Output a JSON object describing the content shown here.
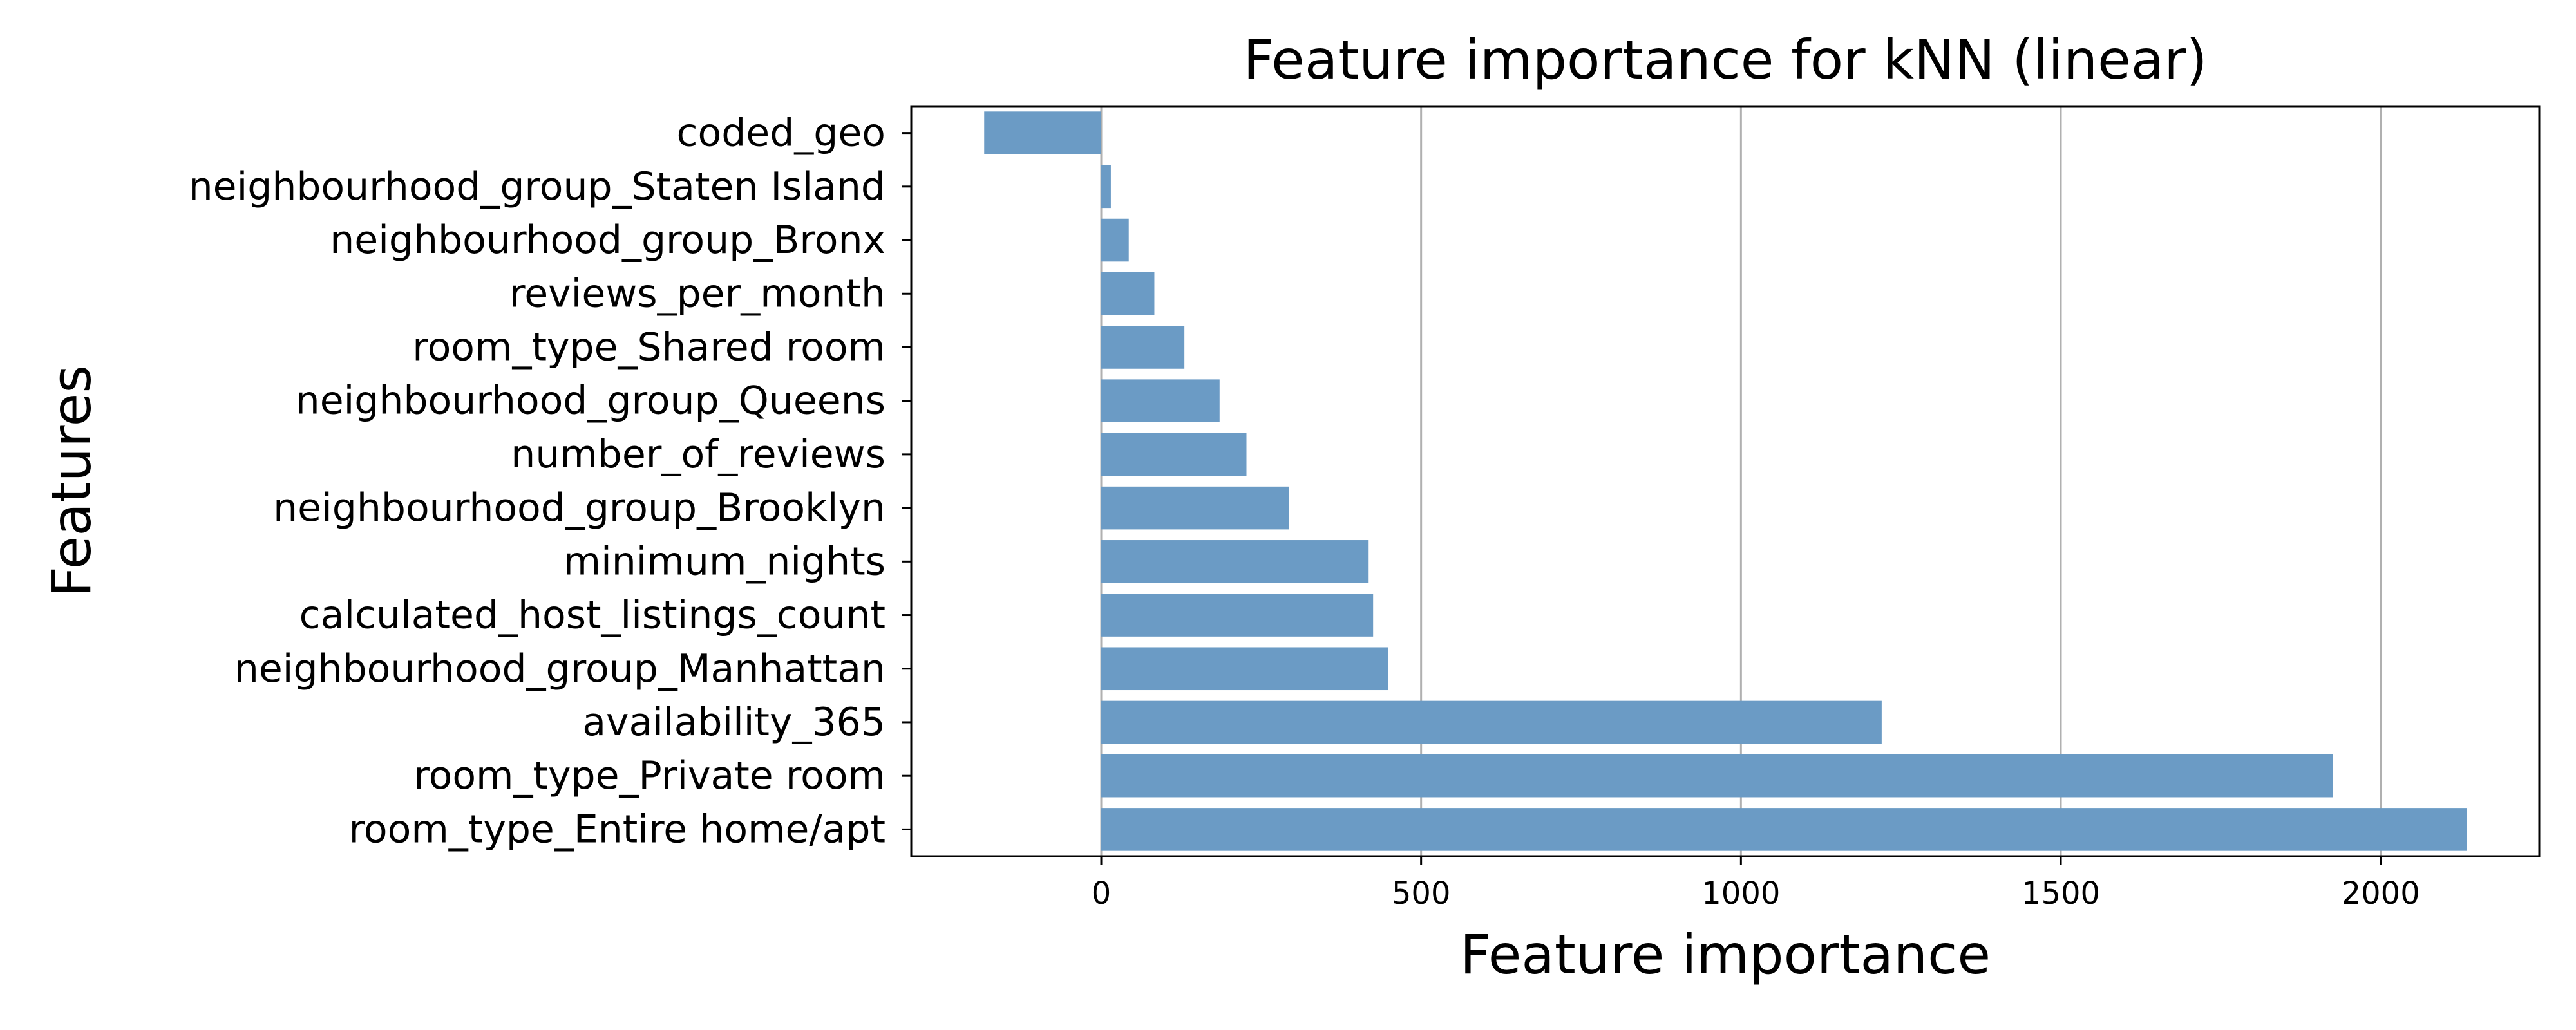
{
  "chart_data": {
    "type": "bar",
    "orientation": "horizontal",
    "title": "Feature importance for kNN (linear)",
    "xlabel": "Feature importance",
    "ylabel": "Features",
    "categories": [
      "room_type_Entire home/apt",
      "room_type_Private room",
      "availability_365",
      "neighbourhood_group_Manhattan",
      "calculated_host_listings_count",
      "minimum_nights",
      "neighbourhood_group_Brooklyn",
      "number_of_reviews",
      "neighbourhood_group_Queens",
      "room_type_Shared room",
      "reviews_per_month",
      "neighbourhood_group_Bronx",
      "neighbourhood_group_Staten Island",
      "coded_geo"
    ],
    "values": [
      2135,
      1925,
      1220,
      448,
      425,
      418,
      293,
      227,
      185,
      130,
      83,
      43,
      15,
      -183
    ],
    "xlim": [
      -297,
      2248
    ],
    "xticks": [
      0,
      500,
      1000,
      1500,
      2000
    ],
    "xtick_labels": [
      "0",
      "500",
      "1000",
      "1500",
      "2000"
    ],
    "grid": "vertical",
    "bar_color": "#6b9bc5"
  }
}
